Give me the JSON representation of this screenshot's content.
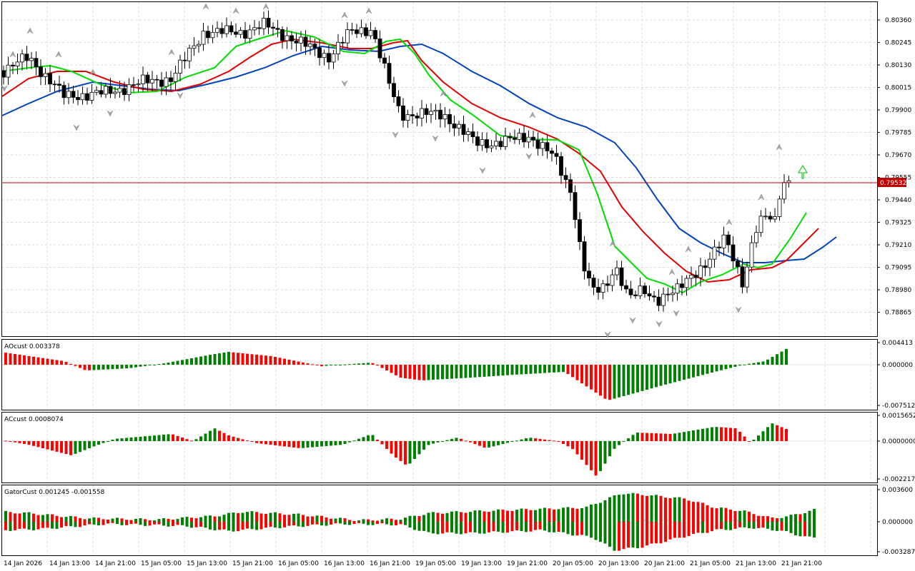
{
  "main_panel": {
    "price_ticks": [
      "0.80360",
      "0.80245",
      "0.80130",
      "0.80015",
      "0.79900",
      "0.79785",
      "0.79670",
      "0.79555",
      "0.79440",
      "0.79325",
      "0.79210",
      "0.79095",
      "0.78980",
      "0.78865"
    ],
    "current_price": "0.79532",
    "colors": {
      "bid_line": "#c00000",
      "ma_green": "#00dd00",
      "ma_red": "#e00000",
      "ma_blue": "#0044bb",
      "arrow_up": "#33cc33",
      "fractal": "#a0a0a0"
    }
  },
  "ao_panel": {
    "title": "AOcust 0.003378",
    "ticks": [
      "0.004413",
      "0.000000",
      "-0.007512"
    ],
    "colors": {
      "up": "#008000",
      "down": "#ff0000"
    }
  },
  "ac_panel": {
    "title": "ACcust 0.0008074",
    "ticks": [
      "0.0015652",
      "0.0000000",
      "-0.0022176"
    ]
  },
  "gator_panel": {
    "title": "GatorCust 0.001245 -0.001558",
    "ticks": [
      "0.003600",
      "0.000000",
      "-0.003287"
    ]
  },
  "time_axis": {
    "labels": [
      "14 Jan 2026",
      "14 Jan 13:00",
      "14 Jan 21:00",
      "15 Jan 05:00",
      "15 Jan 13:00",
      "15 Jan 21:00",
      "16 Jan 05:00",
      "16 Jan 13:00",
      "16 Jan 21:00",
      "19 Jan 05:00",
      "19 Jan 13:00",
      "19 Jan 21:00",
      "20 Jan 05:00",
      "20 Jan 13:00",
      "20 Jan 21:00",
      "21 Jan 05:00",
      "21 Jan 13:00",
      "21 Jan 21:00"
    ]
  }
}
